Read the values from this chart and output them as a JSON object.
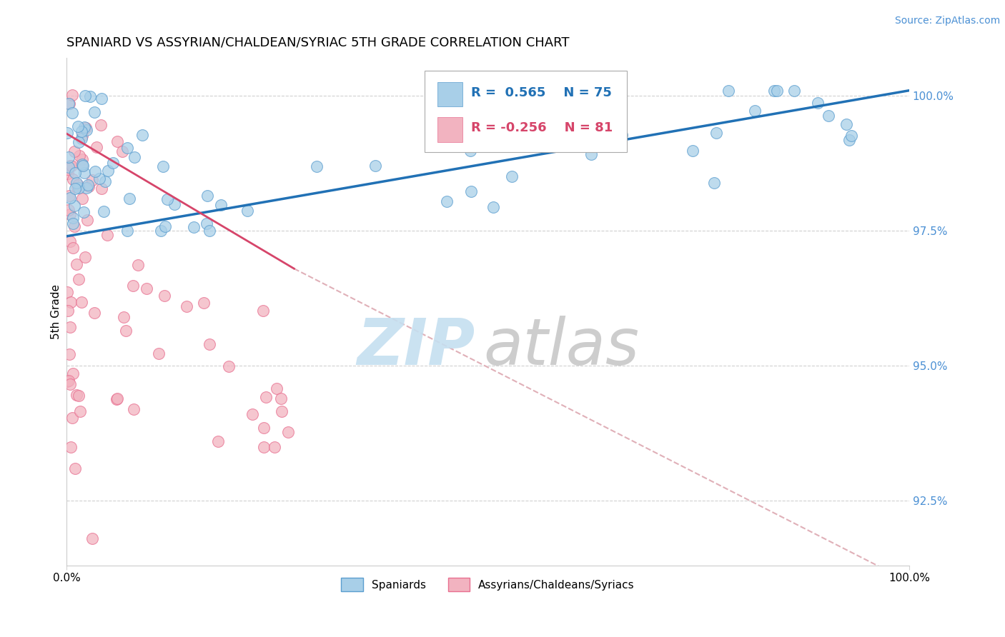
{
  "title": "SPANIARD VS ASSYRIAN/CHALDEAN/SYRIAC 5TH GRADE CORRELATION CHART",
  "source_text": "Source: ZipAtlas.com",
  "ylabel": "5th Grade",
  "ylabel_right_ticks": [
    "100.0%",
    "97.5%",
    "95.0%",
    "92.5%"
  ],
  "ylabel_right_values": [
    1.0,
    0.975,
    0.95,
    0.925
  ],
  "xlim": [
    0.0,
    1.0
  ],
  "ylim": [
    0.913,
    1.007
  ],
  "blue_R": 0.565,
  "blue_N": 75,
  "pink_R": -0.256,
  "pink_N": 81,
  "blue_color": "#a8cfe8",
  "pink_color": "#f2b3c0",
  "blue_edge_color": "#5b9ecf",
  "pink_edge_color": "#e87090",
  "blue_line_color": "#2171b5",
  "pink_line_color": "#d6456a",
  "watermark_zip_color": "#c5dff0",
  "watermark_atlas_color": "#c8c8c8",
  "legend_blue_label": "Spaniards",
  "legend_pink_label": "Assyrians/Chaldeans/Syriacs",
  "grid_color": "#d0d0d0",
  "diag_line_color": "#e0b0b8"
}
